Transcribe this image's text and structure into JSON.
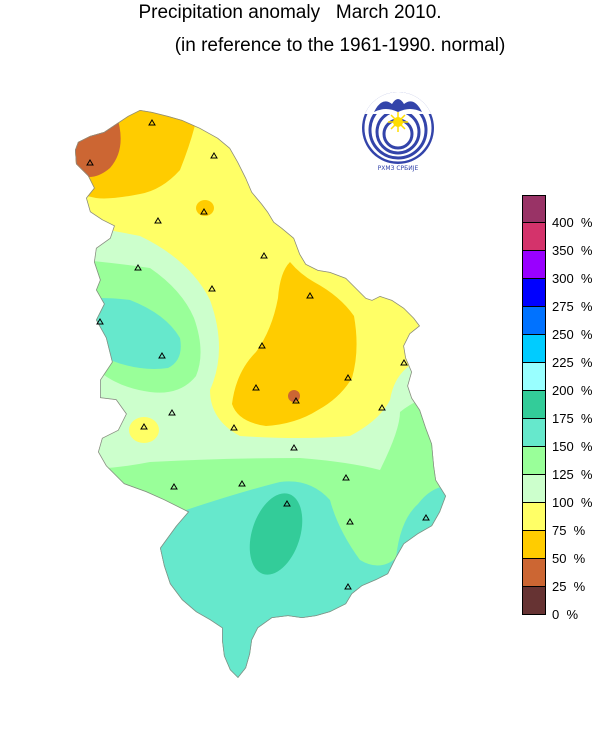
{
  "title": "Precipitation anomaly   March 2010.",
  "subtitle": "(in reference to the 1961-1990. normal)",
  "logo": {
    "icon": "hydrometeorological-service-emblem",
    "text": "РХМЗ СРБИЈЕ"
  },
  "legend": {
    "unit": "%",
    "items": [
      {
        "label": "400  %",
        "color": "#993366"
      },
      {
        "label": "350  %",
        "color": "#d4336b"
      },
      {
        "label": "300  %",
        "color": "#9900ff"
      },
      {
        "label": "275  %",
        "color": "#0000ff"
      },
      {
        "label": "250  %",
        "color": "#0072ff"
      },
      {
        "label": "225  %",
        "color": "#00ccff"
      },
      {
        "label": "200  %",
        "color": "#99ffff"
      },
      {
        "label": "175  %",
        "color": "#33cc99"
      },
      {
        "label": "150  %",
        "color": "#66e8cc"
      },
      {
        "label": "125  %",
        "color": "#99ff99"
      },
      {
        "label": "100  %",
        "color": "#ccffcc"
      },
      {
        "label": "75  %",
        "color": "#ffff66"
      },
      {
        "label": "50  %",
        "color": "#ffcc00"
      },
      {
        "label": "25  %",
        "color": "#cc6633"
      },
      {
        "label": "0  %",
        "color": "#663333"
      }
    ]
  },
  "stations_marker": "triangle"
}
